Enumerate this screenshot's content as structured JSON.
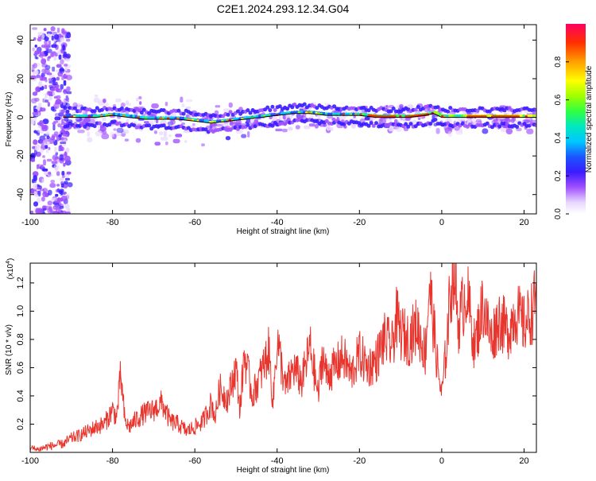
{
  "title": "C2E1.2024.293.12.34.G04",
  "colorbar": {
    "label": "Normalized spectral amplitude",
    "ticks": [
      "0.0",
      "0.2",
      "0.4",
      "0.6",
      "0.8"
    ],
    "tick_values": [
      0.0,
      0.2,
      0.4,
      0.6,
      0.8
    ],
    "range": [
      0,
      1
    ]
  },
  "chart_data": [
    {
      "type": "heatmap",
      "xlabel": "Height of straight line (km)",
      "ylabel": "Frequency (Hz)",
      "xlim": [
        -100,
        23
      ],
      "ylim": [
        -50,
        48
      ],
      "xticks": [
        "-100",
        "-80",
        "-60",
        "-40",
        "-20",
        "0",
        "20"
      ],
      "xtick_values": [
        -100,
        -80,
        -60,
        -40,
        -20,
        0,
        20
      ],
      "yticks": [
        "-40",
        "-20",
        "0",
        "20",
        "40"
      ],
      "ytick_values": [
        -40,
        -20,
        0,
        20,
        40
      ],
      "ridge": {
        "x": [
          -92,
          -88,
          -84,
          -80,
          -76,
          -72,
          -68,
          -64,
          -60,
          -56,
          -52,
          -48,
          -44,
          -40,
          -36,
          -32,
          -28,
          -24,
          -20,
          -16,
          -12,
          -8,
          -4,
          -2,
          0,
          4,
          8,
          12,
          16,
          20,
          23
        ],
        "y": [
          0,
          0,
          0,
          1,
          0,
          -1,
          -1,
          -1,
          -2,
          -3,
          -2,
          -1,
          0,
          1,
          2,
          2,
          1,
          1,
          1,
          0,
          0,
          0,
          1,
          2,
          0,
          0,
          0,
          0,
          0,
          0,
          0
        ]
      }
    },
    {
      "type": "line",
      "xlabel": "Height of straight line (km)",
      "ylabel": "SNR (10 * v/v)",
      "ylabel_multiplier": "(x10",
      "ylabel_multiplier_exp": "4",
      "ylabel_multiplier_close": ")",
      "xlim": [
        -100,
        23
      ],
      "ylim": [
        0,
        1.34
      ],
      "xticks": [
        "-100",
        "-80",
        "-60",
        "-40",
        "-20",
        "0",
        "20"
      ],
      "xtick_values": [
        -100,
        -80,
        -60,
        -40,
        -20,
        0,
        20
      ],
      "yticks": [
        "0.2",
        "0.4",
        "0.6",
        "0.8",
        "1.0",
        "1.2"
      ],
      "ytick_values": [
        0.2,
        0.4,
        0.6,
        0.8,
        1.0,
        1.2
      ],
      "series": [
        {
          "color": "#e8352e",
          "x": [
            -100,
            -98,
            -96,
            -94,
            -92,
            -90,
            -88,
            -86,
            -84,
            -82,
            -80,
            -79,
            -78,
            -77,
            -76,
            -74,
            -72,
            -70,
            -68,
            -66,
            -64,
            -62,
            -60,
            -58,
            -56,
            -55,
            -54,
            -52,
            -50,
            -49,
            -48,
            -46,
            -44,
            -42,
            -41,
            -40,
            -38,
            -36,
            -34,
            -32,
            -30,
            -29,
            -28,
            -26,
            -24,
            -22,
            -20,
            -18,
            -16,
            -14,
            -12,
            -11,
            -10,
            -8,
            -6,
            -4,
            -3,
            -2,
            -1,
            0,
            1,
            2,
            3,
            4,
            6,
            8,
            10,
            12,
            14,
            16,
            18,
            20,
            22,
            23
          ],
          "y": [
            0.03,
            0.02,
            0.04,
            0.05,
            0.06,
            0.1,
            0.12,
            0.15,
            0.18,
            0.2,
            0.3,
            0.25,
            0.55,
            0.22,
            0.18,
            0.24,
            0.28,
            0.3,
            0.35,
            0.22,
            0.2,
            0.15,
            0.18,
            0.22,
            0.35,
            0.25,
            0.45,
            0.38,
            0.6,
            0.3,
            0.7,
            0.4,
            0.55,
            0.72,
            0.35,
            0.8,
            0.45,
            0.6,
            0.5,
            0.75,
            0.4,
            0.7,
            0.55,
            0.6,
            0.68,
            0.55,
            0.7,
            0.6,
            0.65,
            0.8,
            0.75,
            0.95,
            0.85,
            0.8,
            0.9,
            0.7,
            1.2,
            0.9,
            0.6,
            0.4,
            0.7,
            1.1,
            1.33,
            0.9,
            1.15,
            0.75,
            1.05,
            0.8,
            0.95,
            0.85,
            1.0,
            0.9,
            1.0,
            1.1
          ]
        }
      ]
    }
  ]
}
